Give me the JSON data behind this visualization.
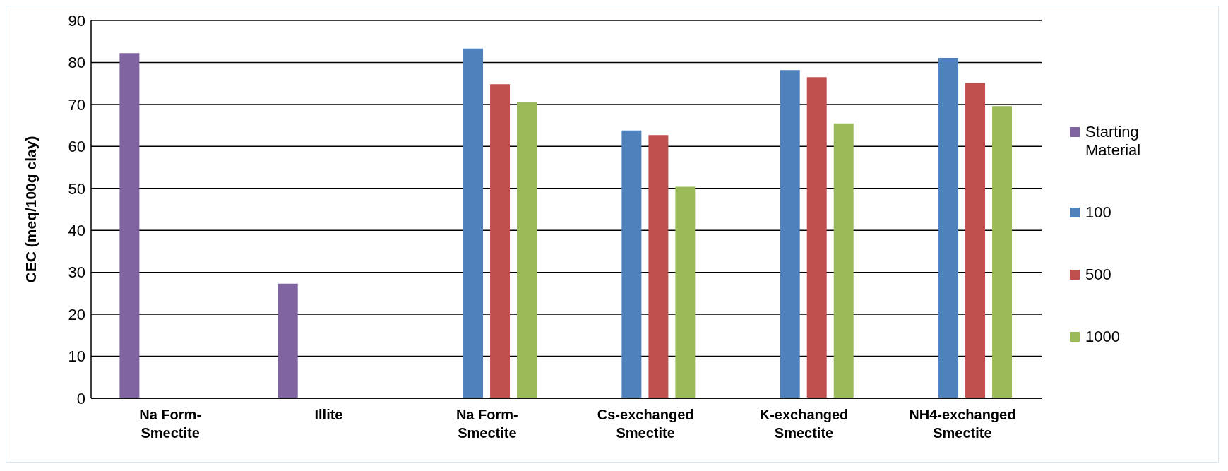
{
  "chart_data": {
    "type": "bar",
    "ylabel": "CEC (meq/100g clay)",
    "categories": [
      "Na Form-\nSmectite",
      "Illite",
      "Na Form-\nSmectite",
      "Cs-exchanged\nSmectite",
      "K-exchanged\nSmectite",
      "NH4-exchanged\nSmectite"
    ],
    "series": [
      {
        "name": "Starting Material",
        "color": "#8064a2",
        "values": [
          82.2,
          27.3,
          null,
          null,
          null,
          null
        ]
      },
      {
        "name": "100",
        "color": "#4f81bd",
        "values": [
          null,
          null,
          83.3,
          63.8,
          78.2,
          81.1
        ]
      },
      {
        "name": "500",
        "color": "#c0504d",
        "values": [
          null,
          null,
          74.8,
          62.7,
          76.5,
          75.1
        ]
      },
      {
        "name": "1000",
        "color": "#9bbb59",
        "values": [
          null,
          null,
          70.6,
          50.4,
          65.5,
          69.6
        ]
      }
    ],
    "ylim": [
      0,
      90
    ],
    "yticks": [
      0,
      10,
      20,
      30,
      40,
      50,
      60,
      70,
      80,
      90
    ],
    "grid": "y",
    "legend": "right"
  }
}
